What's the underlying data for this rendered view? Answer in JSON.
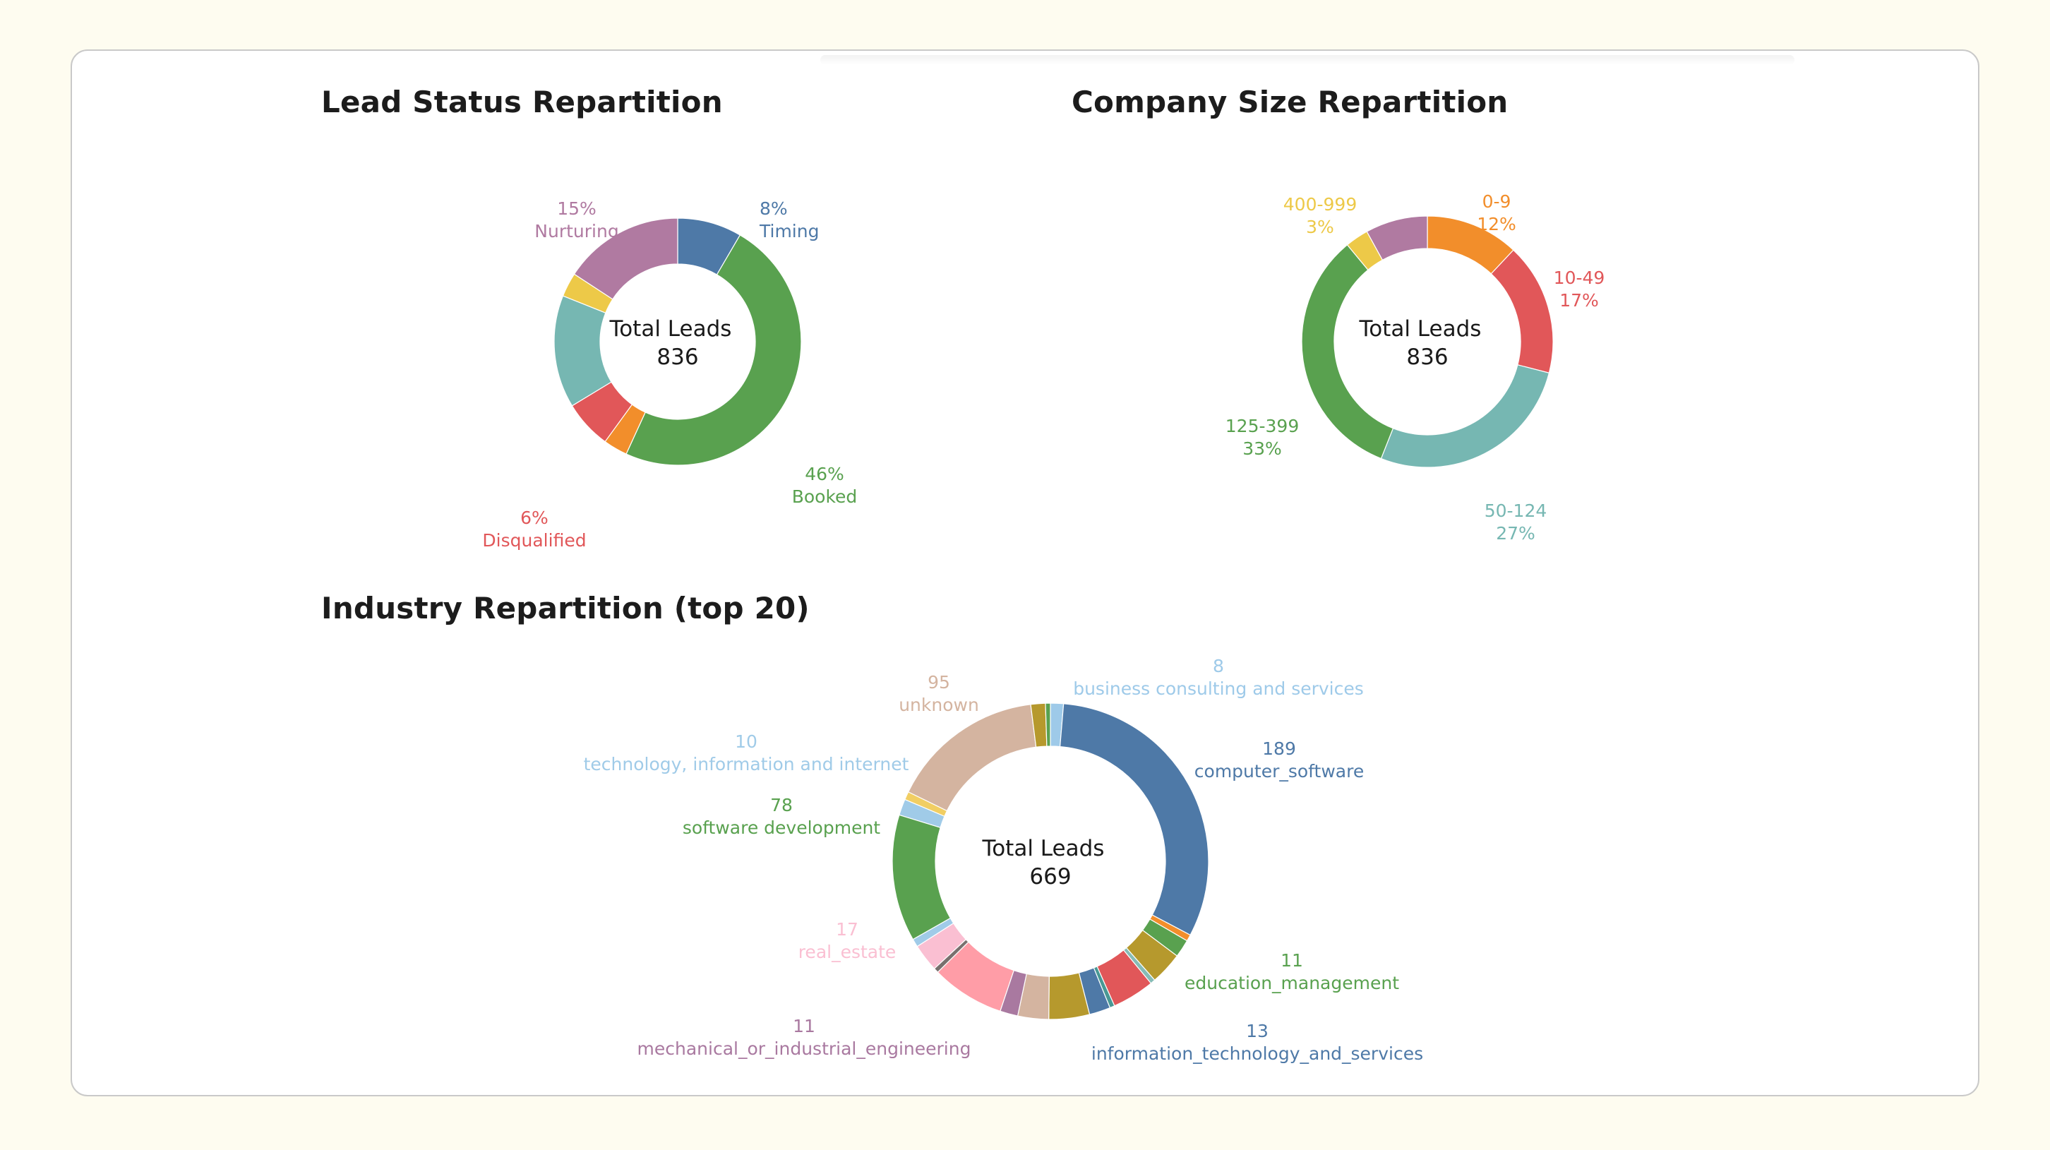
{
  "chart_data": [
    {
      "type": "donut",
      "title": "Lead Status Repartition",
      "center_label": "Total Leads",
      "center_value": "836",
      "slices": [
        {
          "name": "Timing",
          "value": 8,
          "value_label": "8%",
          "color": "#4e79a7",
          "labeled": true
        },
        {
          "name": "Booked",
          "value": 46,
          "value_label": "46%",
          "color": "#59a14f",
          "labeled": true
        },
        {
          "name": "",
          "value": 3,
          "value_label": "",
          "color": "#f28e2b",
          "labeled": false
        },
        {
          "name": "Disqualified",
          "value": 6,
          "value_label": "6%",
          "color": "#e15759",
          "labeled": true
        },
        {
          "name": "",
          "value": 14,
          "value_label": "",
          "color": "#76b7b2",
          "labeled": false
        },
        {
          "name": "",
          "value": 3,
          "value_label": "",
          "color": "#edc948",
          "labeled": false
        },
        {
          "name": "Nurturing",
          "value": 15,
          "value_label": "15%",
          "color": "#b07aa1",
          "labeled": true
        }
      ]
    },
    {
      "type": "donut",
      "title": "Company Size Repartition",
      "center_label": "Total Leads",
      "center_value": "836",
      "slices": [
        {
          "name": "0-9",
          "value": 12,
          "value_label": "12%",
          "color": "#f28e2b",
          "labeled": true
        },
        {
          "name": "10-49",
          "value": 17,
          "value_label": "17%",
          "color": "#e15759",
          "labeled": true
        },
        {
          "name": "50-124",
          "value": 27,
          "value_label": "27%",
          "color": "#76b7b2",
          "labeled": true
        },
        {
          "name": "125-399",
          "value": 33,
          "value_label": "33%",
          "color": "#59a14f",
          "labeled": true
        },
        {
          "name": "400-999",
          "value": 3,
          "value_label": "3%",
          "color": "#edc948",
          "labeled": true
        },
        {
          "name": "",
          "value": 8,
          "value_label": "",
          "color": "#b07aa1",
          "labeled": false
        }
      ]
    },
    {
      "type": "donut",
      "title": "Industry Repartition (top 20)",
      "center_label": "Total Leads",
      "center_value": "669",
      "slices": [
        {
          "name": "business consulting and services",
          "value": 8,
          "value_label": "8",
          "color": "#9ecae9",
          "labeled": true
        },
        {
          "name": "computer_software",
          "value": 189,
          "value_label": "189",
          "color": "#4e79a7",
          "labeled": true
        },
        {
          "name": "",
          "value": 4,
          "value_label": "",
          "color": "#f28e2b",
          "labeled": false
        },
        {
          "name": "education_management",
          "value": 11,
          "value_label": "11",
          "color": "#59a14f",
          "labeled": true
        },
        {
          "name": "",
          "value": 20,
          "value_label": "",
          "color": "#b6992d",
          "labeled": false
        },
        {
          "name": "",
          "value": 3,
          "value_label": "",
          "color": "#86bcb6",
          "labeled": false
        },
        {
          "name": "",
          "value": 26,
          "value_label": "",
          "color": "#e15759",
          "labeled": false
        },
        {
          "name": "",
          "value": 3,
          "value_label": "",
          "color": "#499894",
          "labeled": false
        },
        {
          "name": "information_technology_and_services",
          "value": 13,
          "value_label": "13",
          "color": "#4e79a7",
          "labeled": true
        },
        {
          "name": "",
          "value": 25,
          "value_label": "",
          "color": "#b6992d",
          "labeled": false
        },
        {
          "name": "",
          "value": 19,
          "value_label": "",
          "color": "#d4b4a0",
          "labeled": false
        },
        {
          "name": "mechanical_or_industrial_engineering",
          "value": 11,
          "value_label": "11",
          "color": "#a979a0",
          "labeled": true
        },
        {
          "name": "",
          "value": 45,
          "value_label": "",
          "color": "#ff9da7",
          "labeled": false
        },
        {
          "name": "",
          "value": 3,
          "value_label": "",
          "color": "#79706e",
          "labeled": false
        },
        {
          "name": "real_estate",
          "value": 17,
          "value_label": "17",
          "color": "#fabfd2",
          "labeled": true
        },
        {
          "name": "",
          "value": 5,
          "value_label": "",
          "color": "#a0cbe8",
          "labeled": false
        },
        {
          "name": "software development",
          "value": 78,
          "value_label": "78",
          "color": "#59a14f",
          "labeled": true
        },
        {
          "name": "technology, information and internet",
          "value": 10,
          "value_label": "10",
          "color": "#a0cbe8",
          "labeled": true
        },
        {
          "name": "",
          "value": 5,
          "value_label": "",
          "color": "#f1ce63",
          "labeled": false
        },
        {
          "name": "unknown",
          "value": 95,
          "value_label": "95",
          "color": "#d4b4a0",
          "labeled": true
        },
        {
          "name": "",
          "value": 9,
          "value_label": "",
          "color": "#b6992d",
          "labeled": false
        },
        {
          "name": "",
          "value": 3,
          "value_label": "",
          "color": "#59a14f",
          "labeled": false
        }
      ]
    }
  ]
}
